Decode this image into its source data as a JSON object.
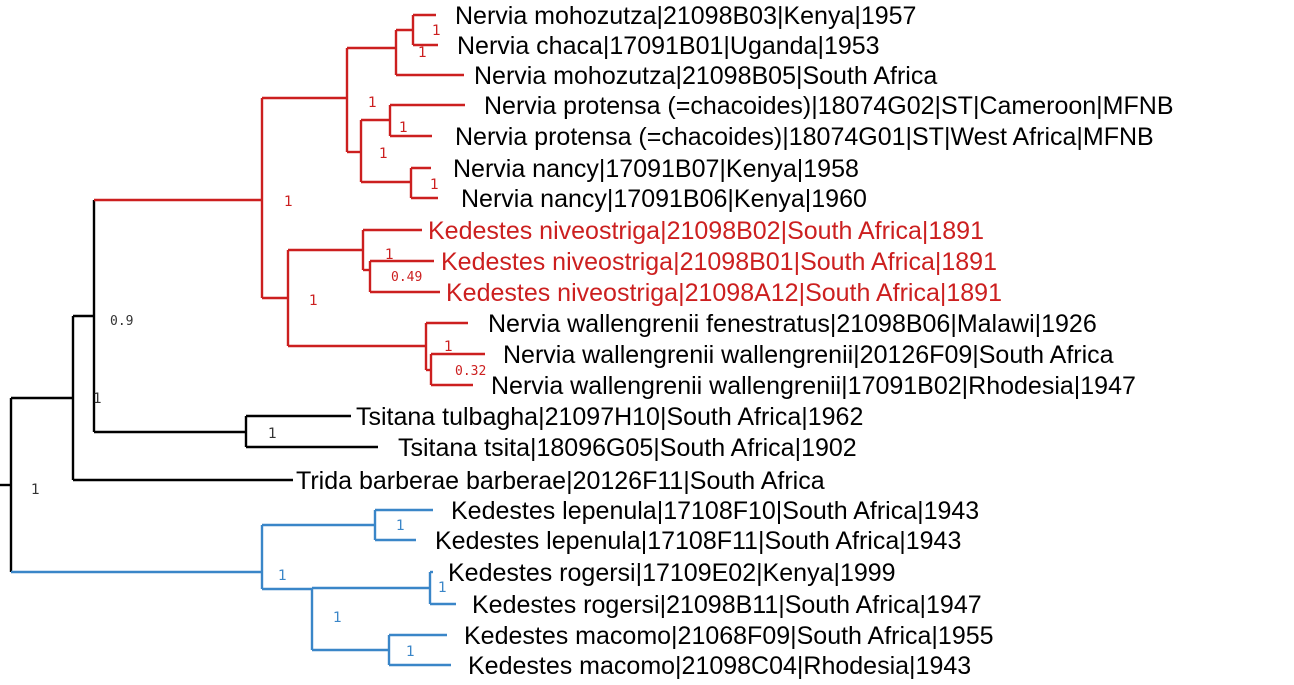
{
  "tree": {
    "colors": {
      "red_clade": "#cc1f1f",
      "blue_clade": "#3a86c8",
      "black": "#000000"
    },
    "tips": [
      {
        "id": "t1",
        "label": "Nervia mohozutza|21098B03|Kenya|1957",
        "color": "black"
      },
      {
        "id": "t2",
        "label": "Nervia chaca|17091B01|Uganda|1953",
        "color": "black"
      },
      {
        "id": "t3",
        "label": "Nervia mohozutza|21098B05|South Africa",
        "color": "black"
      },
      {
        "id": "t4",
        "label": "Nervia protensa (=chacoides)|18074G02|ST|Cameroon|MFNB",
        "color": "black"
      },
      {
        "id": "t5",
        "label": "Nervia protensa (=chacoides)|18074G01|ST|West Africa|MFNB",
        "color": "black"
      },
      {
        "id": "t6",
        "label": "Nervia nancy|17091B07|Kenya|1958",
        "color": "black"
      },
      {
        "id": "t7",
        "label": "Nervia nancy|17091B06|Kenya|1960",
        "color": "black"
      },
      {
        "id": "t8",
        "label": "Kedestes niveostriga|21098B02|South Africa|1891",
        "color": "red"
      },
      {
        "id": "t9",
        "label": "Kedestes niveostriga|21098B01|South Africa|1891",
        "color": "red"
      },
      {
        "id": "t10",
        "label": "Kedestes niveostriga|21098A12|South Africa|1891",
        "color": "red"
      },
      {
        "id": "t11",
        "label": "Nervia wallengrenii fenestratus|21098B06|Malawi|1926",
        "color": "black"
      },
      {
        "id": "t12",
        "label": "Nervia wallengrenii wallengrenii|20126F09|South Africa",
        "color": "black"
      },
      {
        "id": "t13",
        "label": "Nervia wallengrenii wallengrenii|17091B02|Rhodesia|1947",
        "color": "black"
      },
      {
        "id": "t14",
        "label": "Tsitana tulbagha|21097H10|South Africa|1962",
        "color": "black"
      },
      {
        "id": "t15",
        "label": "Tsitana tsita|18096G05|South Africa|1902",
        "color": "black"
      },
      {
        "id": "t16",
        "label": "Trida barberae barberae|20126F11|South Africa",
        "color": "black"
      },
      {
        "id": "t17",
        "label": "Kedestes lepenula|17108F10|South Africa|1943",
        "color": "black"
      },
      {
        "id": "t18",
        "label": "Kedestes lepenula|17108F11|South Africa|1943",
        "color": "black"
      },
      {
        "id": "t19",
        "label": "Kedestes rogersi|17109E02|Kenya|1999",
        "color": "black"
      },
      {
        "id": "t20",
        "label": "Kedestes rogersi|21098B11|South Africa|1947",
        "color": "black"
      },
      {
        "id": "t21",
        "label": "Kedestes macomo|21068F09|South Africa|1955",
        "color": "black"
      },
      {
        "id": "t22",
        "label": "Kedestes macomo|21098C04|Rhodesia|1943",
        "color": "black"
      }
    ],
    "supports": [
      {
        "id": "s1",
        "value": "1"
      },
      {
        "id": "s2",
        "value": "1"
      },
      {
        "id": "s3",
        "value": "1"
      },
      {
        "id": "s4",
        "value": "1"
      },
      {
        "id": "s5",
        "value": "1"
      },
      {
        "id": "s6",
        "value": "1"
      },
      {
        "id": "s7",
        "value": "1"
      },
      {
        "id": "s8",
        "value": "1"
      },
      {
        "id": "s9",
        "value": "0.49"
      },
      {
        "id": "s10",
        "value": "1"
      },
      {
        "id": "s11",
        "value": "1"
      },
      {
        "id": "s12",
        "value": "0.32"
      },
      {
        "id": "s13",
        "value": "0.9"
      },
      {
        "id": "s14",
        "value": "1"
      },
      {
        "id": "s15",
        "value": "1"
      },
      {
        "id": "s16",
        "value": "1"
      },
      {
        "id": "s17",
        "value": "1"
      },
      {
        "id": "s18",
        "value": "1"
      },
      {
        "id": "s19",
        "value": "1"
      },
      {
        "id": "s20",
        "value": "1"
      },
      {
        "id": "s21",
        "value": "1"
      }
    ]
  }
}
